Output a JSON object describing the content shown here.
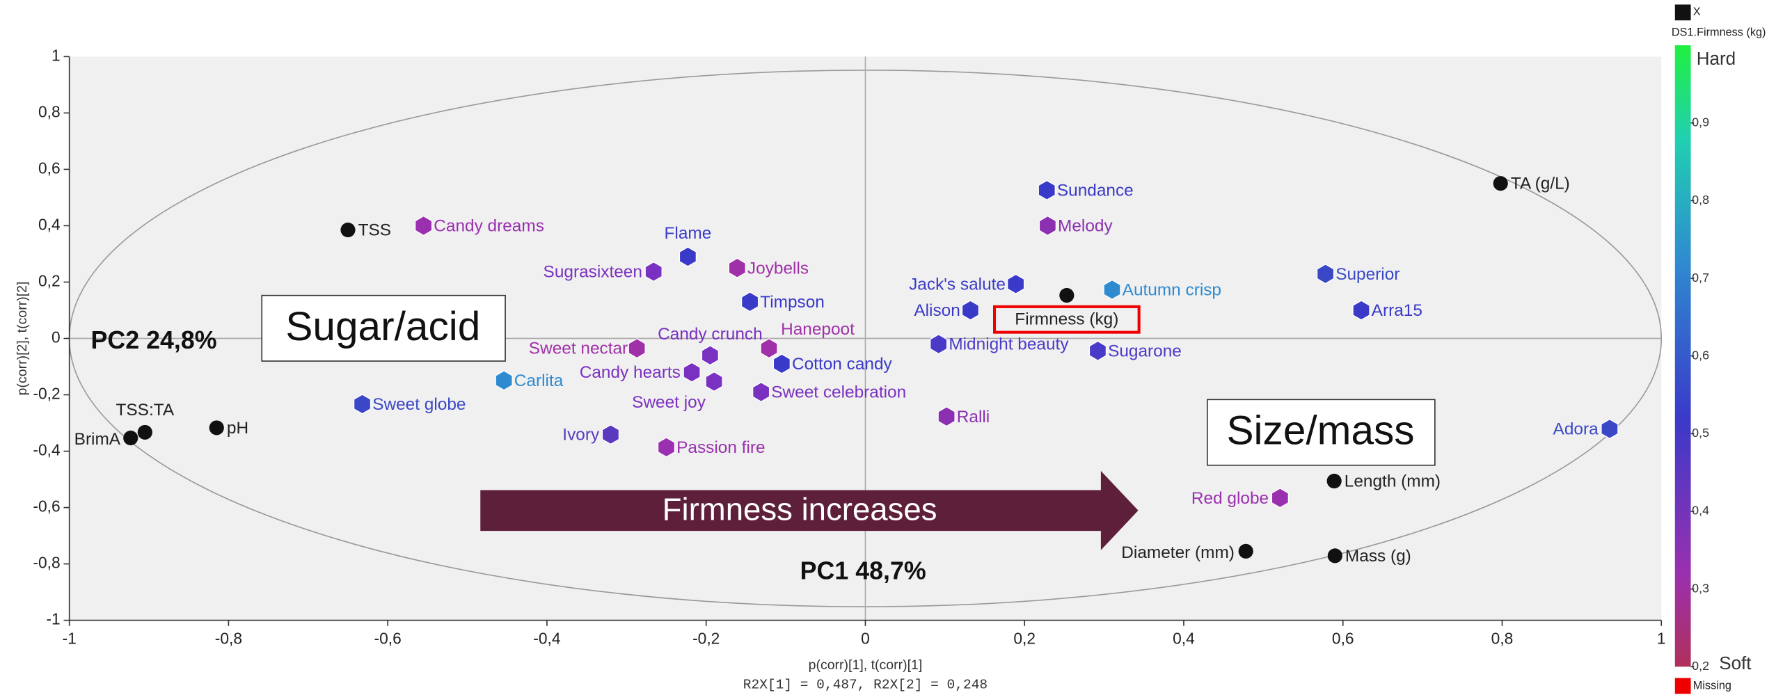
{
  "chart_data": {
    "type": "scatter",
    "x_label": "p(corr)[1], t(corr)[1]",
    "x_sublabel": "R2X[1] = 0,487, R2X[2] = 0,248",
    "y_label": "p(corr)[2], t(corr)[2]",
    "xlim": [
      -1,
      1
    ],
    "ylim": [
      -1,
      1
    ],
    "xticks": [
      -1,
      {
        "value": -0.8,
        "label": "-0,8"
      },
      {
        "value": -0.6,
        "label": "-0,6"
      },
      {
        "value": -0.4,
        "label": "-0,4"
      },
      {
        "value": -0.2,
        "label": "-0,2"
      },
      0,
      {
        "value": 0.2,
        "label": "0,2"
      },
      {
        "value": 0.4,
        "label": "0,4"
      },
      {
        "value": 0.6,
        "label": "0,6"
      },
      {
        "value": 0.8,
        "label": "0,8"
      },
      1
    ],
    "yticks": [
      -1,
      {
        "value": -0.8,
        "label": "-0,8"
      },
      {
        "value": -0.6,
        "label": "-0,6"
      },
      {
        "value": -0.4,
        "label": "-0,4"
      },
      {
        "value": -0.2,
        "label": "-0,2"
      },
      0,
      {
        "value": 0.2,
        "label": "0,2"
      },
      {
        "value": 0.4,
        "label": "0,4"
      },
      {
        "value": 0.6,
        "label": "0,6"
      },
      {
        "value": 0.8,
        "label": "0,8"
      },
      1
    ],
    "annotations": {
      "sugar": "Sugar/acid",
      "size": "Size/mass",
      "arrow": "Firmness increases",
      "pc1": "PC1 48,7%",
      "pc2": "PC2   24,8%"
    },
    "points": [
      {
        "name": "TSS",
        "x": -0.65,
        "y": 0.385,
        "color": "#111111",
        "shape": "circle"
      },
      {
        "name": "Candy dreams",
        "x": -0.555,
        "y": 0.4,
        "color": "#9a30b0",
        "shape": "hexagon"
      },
      {
        "name": "Flame",
        "x": -0.223,
        "y": 0.29,
        "color": "#3a3ac8",
        "shape": "hexagon"
      },
      {
        "name": "Sugrasixteen",
        "x": -0.266,
        "y": 0.237,
        "color": "#7a30c0",
        "shape": "hexagon"
      },
      {
        "name": "Joybells",
        "x": -0.161,
        "y": 0.25,
        "color": "#a030a8",
        "shape": "hexagon"
      },
      {
        "name": "Timpson",
        "x": -0.145,
        "y": 0.13,
        "color": "#3a3ac8",
        "shape": "hexagon"
      },
      {
        "name": "Candy crunch",
        "x": -0.195,
        "y": -0.06,
        "color": "#7a30c0",
        "shape": "hexagon"
      },
      {
        "name": "Hanepoot",
        "x": -0.121,
        "y": -0.035,
        "color": "#a030a8",
        "shape": "hexagon"
      },
      {
        "name": "Sweet nectar",
        "x": -0.287,
        "y": -0.035,
        "color": "#a030a8",
        "shape": "hexagon"
      },
      {
        "name": "Cotton candy",
        "x": -0.105,
        "y": -0.09,
        "color": "#3a3ac8",
        "shape": "hexagon"
      },
      {
        "name": "Candy hearts",
        "x": -0.218,
        "y": -0.12,
        "color": "#7a30c0",
        "shape": "hexagon"
      },
      {
        "name": "Sweet joy",
        "x": -0.19,
        "y": -0.153,
        "color": "#7a30c0",
        "shape": "hexagon"
      },
      {
        "name": "Sweet celebration",
        "x": -0.131,
        "y": -0.19,
        "color": "#7a30c0",
        "shape": "hexagon"
      },
      {
        "name": "Carlita",
        "x": -0.454,
        "y": -0.149,
        "color": "#2f8ad0",
        "shape": "hexagon"
      },
      {
        "name": "Sweet globe",
        "x": -0.632,
        "y": -0.233,
        "color": "#3a48c8",
        "shape": "hexagon"
      },
      {
        "name": "Ivory",
        "x": -0.32,
        "y": -0.341,
        "color": "#5a38c0",
        "shape": "hexagon"
      },
      {
        "name": "Passion fire",
        "x": -0.25,
        "y": -0.386,
        "color": "#9a30b0",
        "shape": "hexagon"
      },
      {
        "name": "Ralli",
        "x": 0.102,
        "y": -0.277,
        "color": "#8a30b0",
        "shape": "hexagon"
      },
      {
        "name": "Midnight beauty",
        "x": 0.092,
        "y": -0.02,
        "color": "#4a3ac8",
        "shape": "hexagon"
      },
      {
        "name": "Alison",
        "x": 0.132,
        "y": 0.1,
        "color": "#3a3ac8",
        "shape": "hexagon"
      },
      {
        "name": "Jack's salute",
        "x": 0.189,
        "y": 0.193,
        "color": "#3a3ac8",
        "shape": "hexagon"
      },
      {
        "name": "Sundance",
        "x": 0.228,
        "y": 0.526,
        "color": "#3a3ac8",
        "shape": "hexagon"
      },
      {
        "name": "Melody",
        "x": 0.229,
        "y": 0.4,
        "color": "#8a30b0",
        "shape": "hexagon"
      },
      {
        "name": "Firmness (kg)",
        "x": 0.253,
        "y": 0.153,
        "color": "#111111",
        "shape": "circle"
      },
      {
        "name": "Autumn crisp",
        "x": 0.31,
        "y": 0.173,
        "color": "#2f8ad0",
        "shape": "hexagon"
      },
      {
        "name": "Sugarone",
        "x": 0.292,
        "y": -0.044,
        "color": "#4a3ac8",
        "shape": "hexagon"
      },
      {
        "name": "Superior",
        "x": 0.578,
        "y": 0.229,
        "color": "#3a48c8",
        "shape": "hexagon"
      },
      {
        "name": "Arra15",
        "x": 0.623,
        "y": 0.1,
        "color": "#3a3ac8",
        "shape": "hexagon"
      },
      {
        "name": "TA (g/L)",
        "x": 0.798,
        "y": 0.55,
        "color": "#111111",
        "shape": "circle"
      },
      {
        "name": "Adora",
        "x": 0.935,
        "y": -0.321,
        "color": "#3a48c8",
        "shape": "hexagon"
      },
      {
        "name": "Red globe",
        "x": 0.521,
        "y": -0.566,
        "color": "#9a30b0",
        "shape": "hexagon"
      },
      {
        "name": "Length (mm)",
        "x": 0.589,
        "y": -0.506,
        "color": "#111111",
        "shape": "circle"
      },
      {
        "name": "Diameter (mm)",
        "x": 0.478,
        "y": -0.755,
        "color": "#111111",
        "shape": "circle"
      },
      {
        "name": "Mass (g)",
        "x": 0.59,
        "y": -0.771,
        "color": "#111111",
        "shape": "circle"
      },
      {
        "name": "pH",
        "x": -0.815,
        "y": -0.317,
        "color": "#111111",
        "shape": "circle"
      },
      {
        "name": "TSS:TA",
        "x": -0.905,
        "y": -0.333,
        "color": "#111111",
        "shape": "circle"
      },
      {
        "name": "BrimA",
        "x": -0.923,
        "y": -0.353,
        "color": "#111111",
        "shape": "circle"
      }
    ],
    "colorbar": {
      "x_legend": "X",
      "title": "DS1.Firmness (kg)",
      "high_label": "Hard",
      "low_label": "Soft",
      "missing_label": "Missing",
      "lim": [
        0.2,
        1
      ],
      "ticks": [
        {
          "value": 0.9,
          "label": "0,9"
        },
        {
          "value": 0.8,
          "label": "0,8"
        },
        {
          "value": 0.7,
          "label": "0,7"
        },
        {
          "value": 0.6,
          "label": "0,6"
        },
        {
          "value": 0.5,
          "label": "0,5"
        },
        {
          "value": 0.4,
          "label": "0,4"
        },
        {
          "value": 0.3,
          "label": "0,3"
        },
        {
          "value": 0.2,
          "label": "0,2"
        }
      ]
    }
  }
}
